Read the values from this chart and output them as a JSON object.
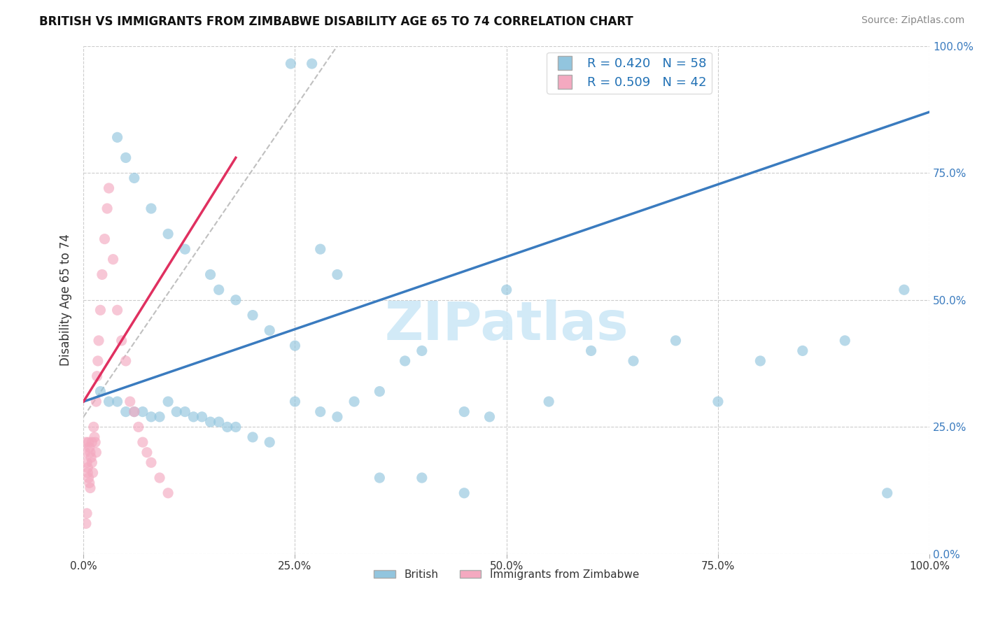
{
  "title": "BRITISH VS IMMIGRANTS FROM ZIMBABWE DISABILITY AGE 65 TO 74 CORRELATION CHART",
  "source": "Source: ZipAtlas.com",
  "ylabel": "Disability Age 65 to 74",
  "xlim": [
    0,
    1.0
  ],
  "ylim": [
    0,
    1.0
  ],
  "ytick_positions": [
    0.0,
    0.25,
    0.5,
    0.75,
    1.0
  ],
  "xtick_positions": [
    0.0,
    0.25,
    0.5,
    0.75,
    1.0
  ],
  "xtick_labels": [
    "0.0%",
    "25.0%",
    "50.0%",
    "75.0%",
    "100.0%"
  ],
  "ytick_labels": [
    "0.0%",
    "25.0%",
    "50.0%",
    "75.0%",
    "100.0%"
  ],
  "legend_r_british": "R = 0.420",
  "legend_n_british": "N = 58",
  "legend_r_zimb": "R = 0.509",
  "legend_n_zimb": "N = 42",
  "blue_color": "#92c5de",
  "pink_color": "#f4a9c0",
  "blue_line_color": "#3a7bbf",
  "pink_line_color": "#e03060",
  "watermark_color": "#cde8f7",
  "watermark": "ZIPatlas",
  "british_x": [
    0.245,
    0.27,
    0.04,
    0.05,
    0.06,
    0.08,
    0.1,
    0.12,
    0.15,
    0.16,
    0.18,
    0.2,
    0.22,
    0.25,
    0.28,
    0.3,
    0.32,
    0.35,
    0.38,
    0.4,
    0.45,
    0.48,
    0.5,
    0.55,
    0.6,
    0.65,
    0.7,
    0.75,
    0.8,
    0.85,
    0.9,
    0.95,
    0.97,
    0.02,
    0.03,
    0.04,
    0.05,
    0.06,
    0.07,
    0.08,
    0.09,
    0.1,
    0.11,
    0.12,
    0.13,
    0.14,
    0.15,
    0.16,
    0.17,
    0.18,
    0.2,
    0.22,
    0.25,
    0.28,
    0.3,
    0.35,
    0.4,
    0.45
  ],
  "british_y": [
    0.965,
    0.965,
    0.82,
    0.78,
    0.74,
    0.68,
    0.63,
    0.6,
    0.55,
    0.52,
    0.5,
    0.47,
    0.44,
    0.41,
    0.6,
    0.55,
    0.3,
    0.32,
    0.38,
    0.4,
    0.28,
    0.27,
    0.52,
    0.3,
    0.4,
    0.38,
    0.42,
    0.3,
    0.38,
    0.4,
    0.42,
    0.12,
    0.52,
    0.32,
    0.3,
    0.3,
    0.28,
    0.28,
    0.28,
    0.27,
    0.27,
    0.3,
    0.28,
    0.28,
    0.27,
    0.27,
    0.26,
    0.26,
    0.25,
    0.25,
    0.23,
    0.22,
    0.3,
    0.28,
    0.27,
    0.15,
    0.15,
    0.12
  ],
  "zimb_x": [
    0.002,
    0.003,
    0.004,
    0.005,
    0.005,
    0.006,
    0.006,
    0.007,
    0.007,
    0.008,
    0.008,
    0.009,
    0.01,
    0.01,
    0.011,
    0.012,
    0.013,
    0.014,
    0.015,
    0.015,
    0.016,
    0.017,
    0.018,
    0.02,
    0.022,
    0.025,
    0.028,
    0.03,
    0.035,
    0.04,
    0.045,
    0.05,
    0.055,
    0.06,
    0.065,
    0.07,
    0.075,
    0.08,
    0.09,
    0.1,
    0.003,
    0.004
  ],
  "zimb_y": [
    0.2,
    0.22,
    0.18,
    0.17,
    0.16,
    0.15,
    0.22,
    0.14,
    0.21,
    0.13,
    0.2,
    0.19,
    0.18,
    0.22,
    0.16,
    0.25,
    0.23,
    0.22,
    0.2,
    0.3,
    0.35,
    0.38,
    0.42,
    0.48,
    0.55,
    0.62,
    0.68,
    0.72,
    0.58,
    0.48,
    0.42,
    0.38,
    0.3,
    0.28,
    0.25,
    0.22,
    0.2,
    0.18,
    0.15,
    0.12,
    0.06,
    0.08
  ],
  "blue_trend": [
    0.0,
    1.0,
    0.3,
    0.87
  ],
  "pink_trend": [
    0.0,
    0.18,
    0.3,
    0.78
  ],
  "dashed_line": [
    0.0,
    0.27,
    0.3,
    1.0
  ]
}
